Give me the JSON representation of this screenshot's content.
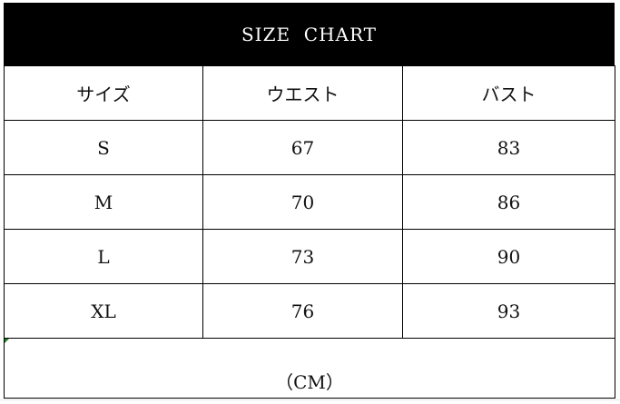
{
  "title": "SIZE  CHART",
  "columns": [
    "サイズ",
    "ウエスト",
    "バスト"
  ],
  "rows": [
    [
      "S",
      "67",
      "83"
    ],
    [
      "M",
      "70",
      "86"
    ],
    [
      "L",
      "73",
      "90"
    ],
    [
      "XL",
      "76",
      "93"
    ]
  ],
  "unit": "（CM）",
  "colors": {
    "header_bg": "#000000",
    "header_text": "#ffffff",
    "border": "#000000"
  }
}
